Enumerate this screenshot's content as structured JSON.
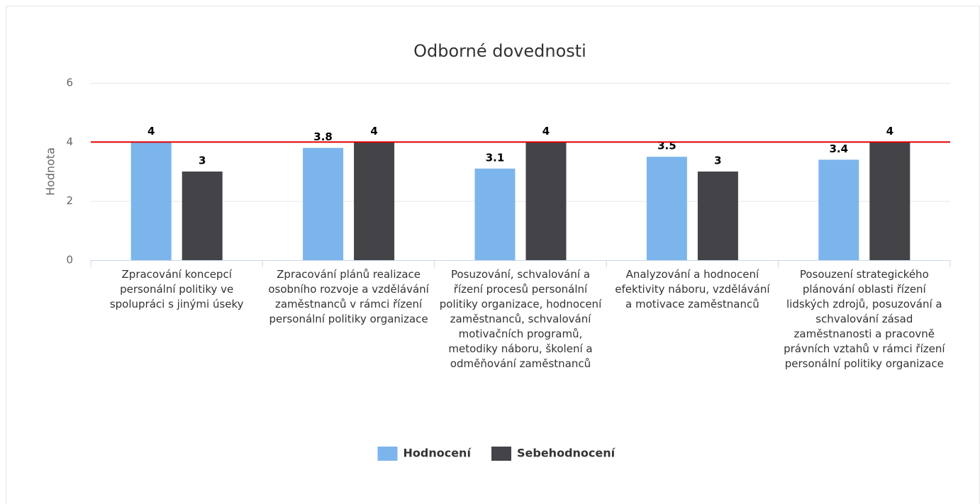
{
  "chart_data": {
    "type": "bar",
    "title": "Odborné dovednosti",
    "y_label": "Hodnota",
    "categories": [
      "Zpracování koncepcí personální politiky ve spolupráci s jinými úseky",
      "Zpracování plánů realizace osobního rozvoje a vzdělávání zaměstnanců v rámci řízení personální politiky organizace",
      "Posuzování, schvalování a řízení procesů personální politiky organizace, hodnocení zaměstnanců, schvalování motivačních programů, metodiky náboru, školení a odměňování zaměstnanců",
      "Analyzování a hodnocení efektivity náboru, vzdělávání a motivace zaměstnanců",
      "Posouzení strategického plánování oblasti řízení lidských zdrojů, posuzování a schvalování zásad zaměstnanosti a pracovně právních vztahů v rámci řízení personální politiky organizace"
    ],
    "series": [
      {
        "name": "Hodnocení",
        "color": "#7cb5ec",
        "values": [
          4,
          3.8,
          3.1,
          3.5,
          3.4
        ]
      },
      {
        "name": "Sebehodnocení",
        "color": "#434348",
        "values": [
          3,
          4,
          4,
          3,
          4
        ]
      }
    ],
    "ylim": [
      0,
      6
    ],
    "yticks": [
      0,
      2,
      4,
      6
    ],
    "grid": true,
    "plot_line": {
      "value": 4,
      "color": "#e00000"
    },
    "legend": "bottom"
  }
}
